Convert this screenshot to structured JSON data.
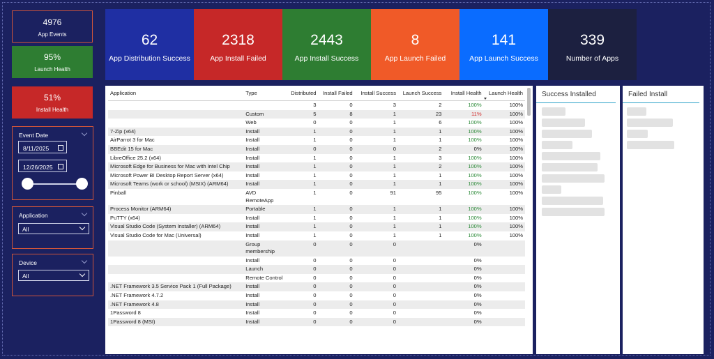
{
  "summary_cards": [
    {
      "value": "4976",
      "label": "App Events"
    },
    {
      "value": "95%",
      "label": "Launch Health"
    },
    {
      "value": "51%",
      "label": "Install Health"
    }
  ],
  "filters": {
    "event_date": {
      "label": "Event Date",
      "start": "8/11/2025",
      "end": "12/26/2025"
    },
    "application": {
      "label": "Application",
      "value": "All"
    },
    "device": {
      "label": "Device",
      "value": "All"
    }
  },
  "kpis": [
    {
      "value": "62",
      "label": "App Distribution Success"
    },
    {
      "value": "2318",
      "label": "App Install Failed"
    },
    {
      "value": "2443",
      "label": "App Install Success"
    },
    {
      "value": "8",
      "label": "App Launch Failed"
    },
    {
      "value": "141",
      "label": "App Launch Success"
    },
    {
      "value": "339",
      "label": "Number of Apps"
    }
  ],
  "table": {
    "columns": [
      "Application",
      "Type",
      "Distributed",
      "Install Failed",
      "Install Success",
      "Launch Success",
      "Install Health",
      "Launch Health"
    ],
    "rows": [
      [
        null,
        null,
        3,
        0,
        3,
        2,
        "100%",
        "100%"
      ],
      [
        null,
        "Custom",
        5,
        8,
        1,
        23,
        "11%",
        "100%"
      ],
      [
        null,
        "Web",
        0,
        0,
        1,
        6,
        "100%",
        "100%"
      ],
      [
        "7-Zip (x64)",
        "Install",
        1,
        0,
        1,
        1,
        "100%",
        "100%"
      ],
      [
        "AirParrot 3 for Mac",
        "Install",
        1,
        0,
        1,
        1,
        "100%",
        "100%"
      ],
      [
        "BBEdit 15 for Mac",
        "Install",
        0,
        0,
        0,
        2,
        "0%",
        "100%"
      ],
      [
        "LibreOffice 25.2 (x64)",
        "Install",
        1,
        0,
        1,
        3,
        "100%",
        "100%"
      ],
      [
        "Microsoft Edge for Business for Mac with Intel Chip",
        "Install",
        1,
        0,
        1,
        2,
        "100%",
        "100%"
      ],
      [
        "Microsoft Power BI Desktop Report Server (x64)",
        "Install",
        1,
        0,
        1,
        1,
        "100%",
        "100%"
      ],
      [
        "Microsoft Teams (work or school) (MSIX) (ARM64)",
        "Install",
        1,
        0,
        1,
        1,
        "100%",
        "100%"
      ],
      [
        "Pinball",
        "AVD RemoteApp",
        1,
        0,
        91,
        95,
        "100%",
        "100%"
      ],
      [
        "Process Monitor (ARM64)",
        "Portable",
        1,
        0,
        1,
        1,
        "100%",
        "100%"
      ],
      [
        "PuTTY (x64)",
        "Install",
        1,
        0,
        1,
        1,
        "100%",
        "100%"
      ],
      [
        "Visual Studio Code (System Installer) (ARM64)",
        "Install",
        1,
        0,
        1,
        1,
        "100%",
        "100%"
      ],
      [
        "Visual Studio Code for Mac (Universal)",
        "Install",
        1,
        0,
        1,
        1,
        "100%",
        "100%"
      ],
      [
        null,
        "Group membership",
        0,
        0,
        0,
        null,
        "0%",
        null
      ],
      [
        null,
        "Install",
        0,
        0,
        0,
        null,
        "0%",
        null
      ],
      [
        null,
        "Launch",
        0,
        0,
        0,
        null,
        "0%",
        null
      ],
      [
        null,
        "Remote Control",
        0,
        0,
        0,
        null,
        "0%",
        null
      ],
      [
        ".NET Framework 3.5 Service Pack 1 (Full Package)",
        "Install",
        0,
        0,
        0,
        null,
        "0%",
        null
      ],
      [
        ".NET Framework 4.7.2",
        "Install",
        0,
        0,
        0,
        null,
        "0%",
        null
      ],
      [
        ".NET Framework 4.8",
        "Install",
        0,
        0,
        0,
        null,
        "0%",
        null
      ],
      [
        "1Password 8",
        "Install",
        0,
        0,
        0,
        null,
        "0%",
        null
      ],
      [
        "1Password 8 (MSI)",
        "Install",
        0,
        0,
        0,
        null,
        "0%",
        null
      ]
    ]
  },
  "panels": [
    {
      "title": "Success Installed"
    },
    {
      "title": "Failed Install"
    }
  ]
}
